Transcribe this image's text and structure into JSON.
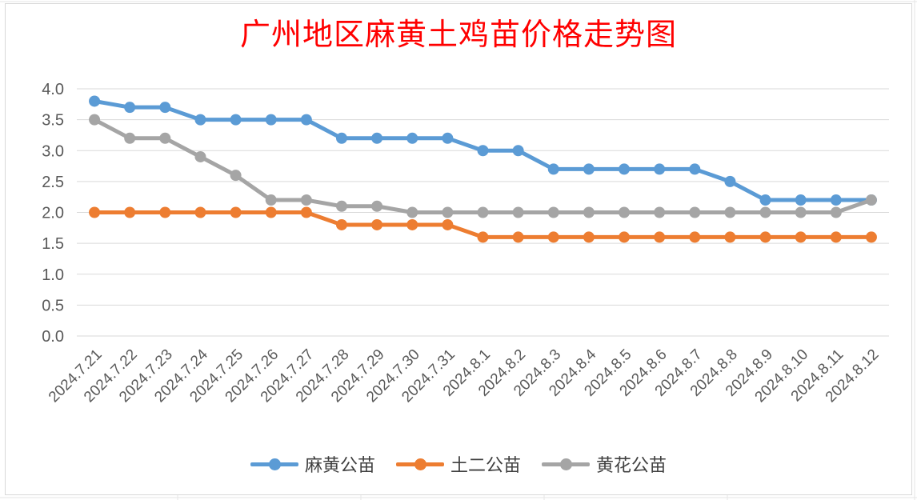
{
  "chart_data": {
    "type": "line",
    "title": "广州地区麻黄土鸡苗价格走势图",
    "xlabel": "",
    "ylabel": "",
    "categories": [
      "2024.7.21",
      "2024.7.22",
      "2024.7.23",
      "2024.7.24",
      "2024.7.25",
      "2024.7.26",
      "2024.7.27",
      "2024.7.28",
      "2024.7.29",
      "2024.7.30",
      "2024.7.31",
      "2024.8.1",
      "2024.8.2",
      "2024.8.3",
      "2024.8.4",
      "2024.8.5",
      "2024.8.6",
      "2024.8.7",
      "2024.8.8",
      "2024.8.9",
      "2024.8.10",
      "2024.8.11",
      "2024.8.12"
    ],
    "ylim": [
      0,
      4.0
    ],
    "yticks": [
      "0.0",
      "0.5",
      "1.0",
      "1.5",
      "2.0",
      "2.5",
      "3.0",
      "3.5",
      "4.0"
    ],
    "grid": true,
    "legend_position": "bottom",
    "series": [
      {
        "name": "麻黄公苗",
        "color": "#5b9bd5",
        "values": [
          3.8,
          3.7,
          3.7,
          3.5,
          3.5,
          3.5,
          3.5,
          3.2,
          3.2,
          3.2,
          3.2,
          3.0,
          3.0,
          2.7,
          2.7,
          2.7,
          2.7,
          2.7,
          2.5,
          2.2,
          2.2,
          2.2,
          2.2
        ]
      },
      {
        "name": "土二公苗",
        "color": "#ed7d31",
        "values": [
          2.0,
          2.0,
          2.0,
          2.0,
          2.0,
          2.0,
          2.0,
          1.8,
          1.8,
          1.8,
          1.8,
          1.6,
          1.6,
          1.6,
          1.6,
          1.6,
          1.6,
          1.6,
          1.6,
          1.6,
          1.6,
          1.6,
          1.6
        ]
      },
      {
        "name": "黄花公苗",
        "color": "#a5a5a5",
        "values": [
          3.5,
          3.2,
          3.2,
          2.9,
          2.6,
          2.2,
          2.2,
          2.1,
          2.1,
          2.0,
          2.0,
          2.0,
          2.0,
          2.0,
          2.0,
          2.0,
          2.0,
          2.0,
          2.0,
          2.0,
          2.0,
          2.0,
          2.2
        ]
      }
    ]
  }
}
